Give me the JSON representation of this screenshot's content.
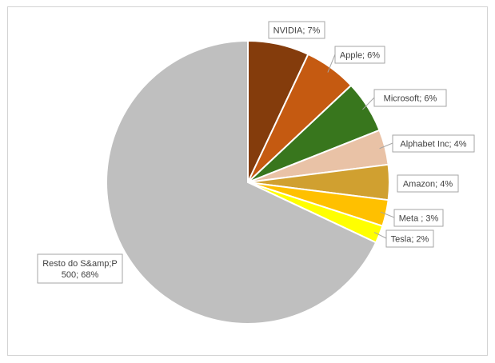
{
  "chart_data": {
    "type": "pie",
    "title": "",
    "start_angle_deg": 0,
    "direction": "clockwise",
    "slices": [
      {
        "label": "NVIDIA",
        "value": 7,
        "display": "NVIDIA; 7%",
        "color": "#843c0c"
      },
      {
        "label": "Apple",
        "value": 6,
        "display": "Apple; 6%",
        "color": "#c55a11"
      },
      {
        "label": "Microsoft",
        "value": 6,
        "display": "Microsoft; 6%",
        "color": "#38761d"
      },
      {
        "label": "Alphabet Inc",
        "value": 4,
        "display": "Alphabet Inc; 4%",
        "color": "#e9c2a6"
      },
      {
        "label": "Amazon",
        "value": 4,
        "display": "Amazon; 4%",
        "color": "#d0a030"
      },
      {
        "label": "Meta",
        "value": 3,
        "display": "Meta ; 3%",
        "color": "#ffc000"
      },
      {
        "label": "Tesla",
        "value": 2,
        "display": "Tesla; 2%",
        "color": "#ffff00"
      },
      {
        "label": "Resto do S&amp;P 500",
        "value": 68,
        "display": [
          "Resto do S&amp;P",
          "500; 68%"
        ],
        "color": "#bfbfbf"
      }
    ]
  }
}
